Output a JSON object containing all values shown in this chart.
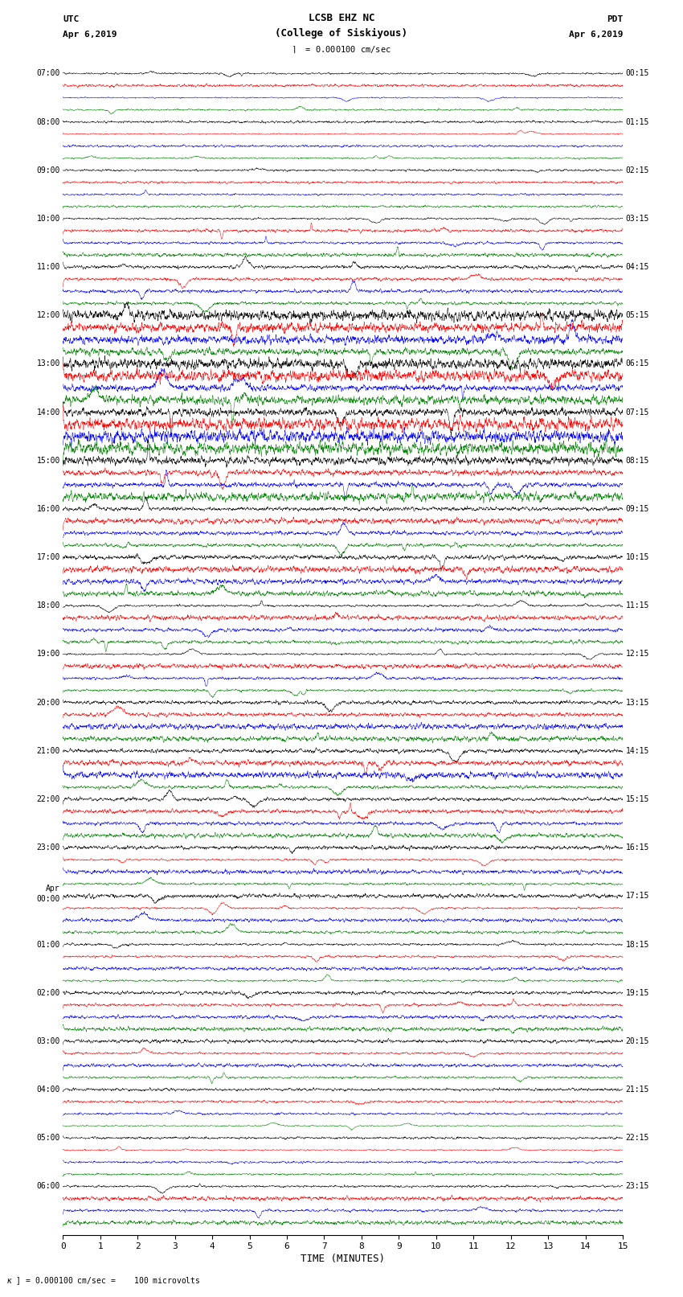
{
  "title_line1": "LCSB EHZ NC",
  "title_line2": "(College of Siskiyous)",
  "utc_label": "UTC",
  "utc_date": "Apr 6,2019",
  "pdt_label": "PDT",
  "pdt_date": "Apr 6,2019",
  "scale_text": "= 0.000100 cm/sec",
  "bottom_text": "= 0.000100 cm/sec =    100 microvolts",
  "xlabel": "TIME (MINUTES)",
  "colors": [
    "black",
    "red",
    "blue",
    "green"
  ],
  "num_traces": 96,
  "minutes": 15,
  "figsize": [
    8.5,
    16.13
  ],
  "dpi": 100,
  "left_times_utc": [
    "07:00",
    "08:00",
    "09:00",
    "10:00",
    "11:00",
    "12:00",
    "13:00",
    "14:00",
    "15:00",
    "16:00",
    "17:00",
    "18:00",
    "19:00",
    "20:00",
    "21:00",
    "22:00",
    "23:00",
    "Apr\n00:00",
    "01:00",
    "02:00",
    "03:00",
    "04:00",
    "05:00",
    "06:00"
  ],
  "right_times_pdt": [
    "00:15",
    "01:15",
    "02:15",
    "03:15",
    "04:15",
    "05:15",
    "06:15",
    "07:15",
    "08:15",
    "09:15",
    "10:15",
    "11:15",
    "12:15",
    "13:15",
    "14:15",
    "15:15",
    "16:15",
    "17:15",
    "18:15",
    "19:15",
    "20:15",
    "21:15",
    "22:15",
    "23:15"
  ],
  "bg_color": "white",
  "amplitude_groups": [
    0.12,
    0.12,
    0.12,
    0.12,
    0.1,
    0.1,
    0.1,
    0.1,
    0.1,
    0.1,
    0.1,
    0.1,
    0.18,
    0.18,
    0.18,
    0.18,
    0.25,
    0.25,
    0.25,
    0.25,
    0.5,
    0.5,
    0.5,
    0.5,
    0.55,
    0.55,
    0.55,
    0.55,
    0.55,
    0.55,
    0.55,
    0.55,
    0.4,
    0.4,
    0.4,
    0.4,
    0.25,
    0.25,
    0.25,
    0.25,
    0.3,
    0.3,
    0.3,
    0.3,
    0.22,
    0.22,
    0.22,
    0.22,
    0.2,
    0.2,
    0.2,
    0.2,
    0.25,
    0.25,
    0.25,
    0.25,
    0.3,
    0.3,
    0.3,
    0.3,
    0.28,
    0.28,
    0.28,
    0.28,
    0.18,
    0.18,
    0.18,
    0.18,
    0.22,
    0.22,
    0.22,
    0.22,
    0.15,
    0.15,
    0.15,
    0.15,
    0.18,
    0.18,
    0.18,
    0.18,
    0.15,
    0.15,
    0.15,
    0.15,
    0.12,
    0.12,
    0.12,
    0.12,
    0.1,
    0.1,
    0.1,
    0.1,
    0.18,
    0.18,
    0.18,
    0.18
  ]
}
